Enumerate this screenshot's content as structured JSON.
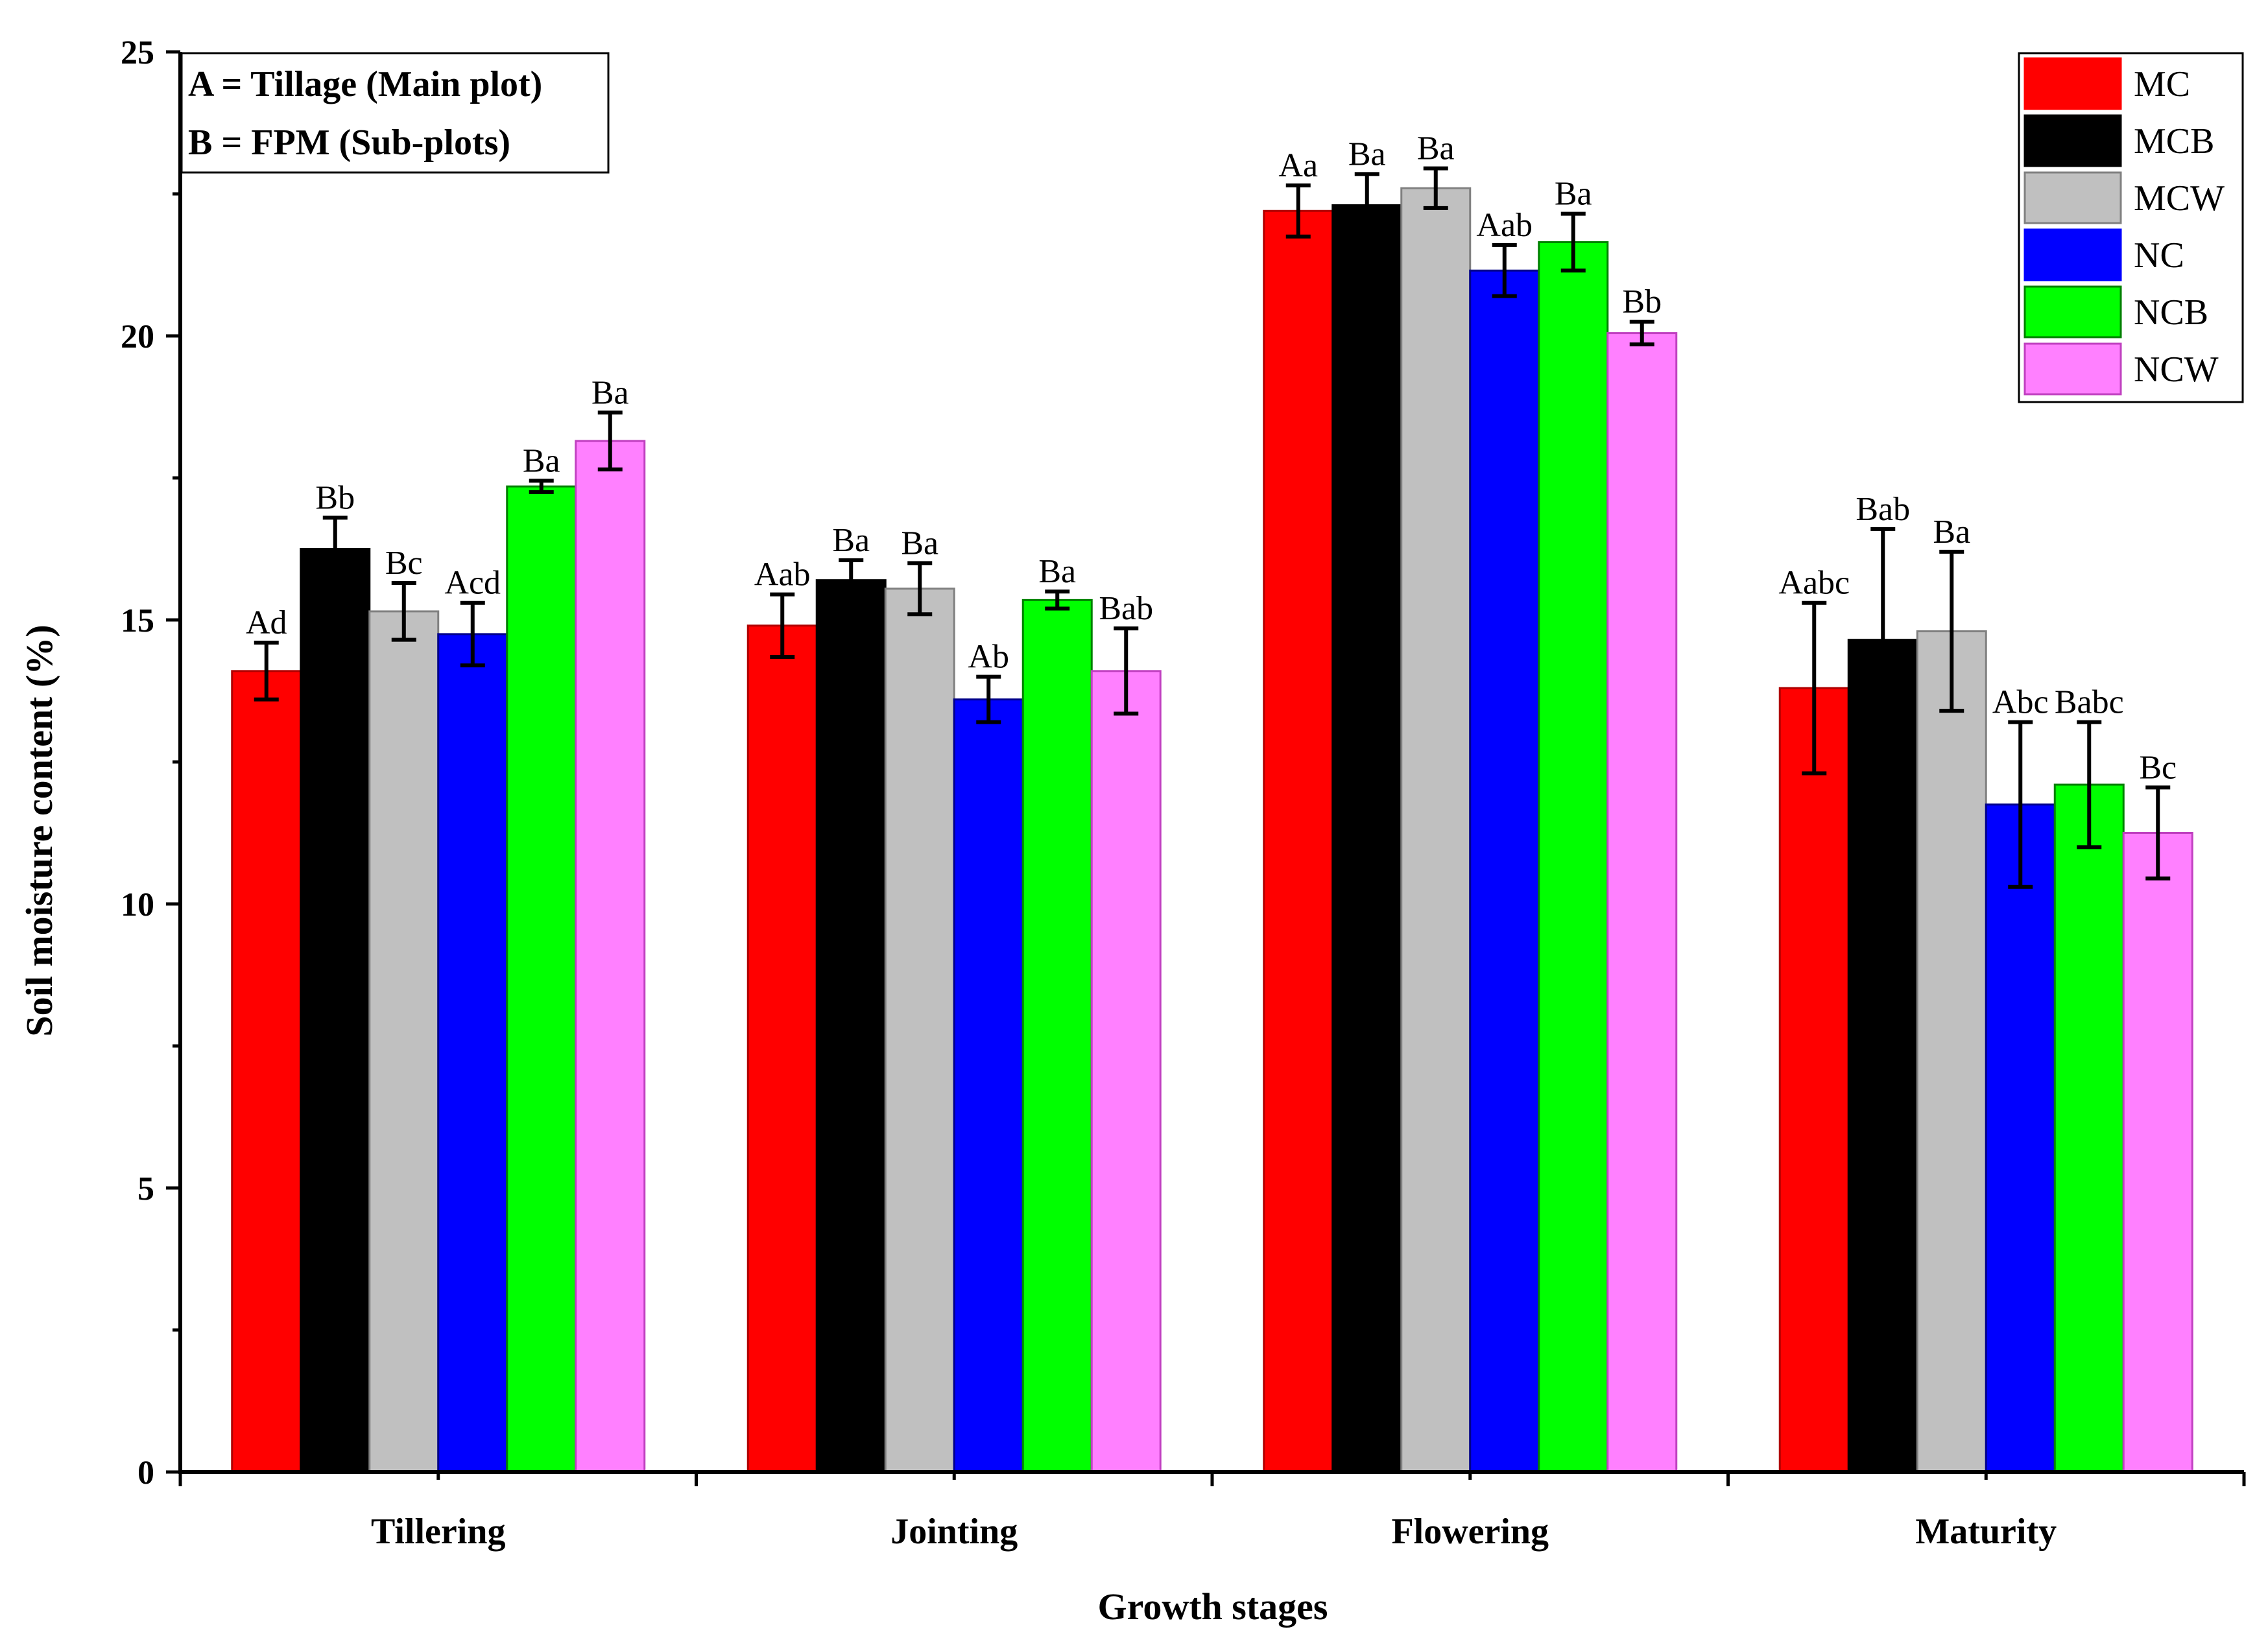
{
  "chart_data": {
    "type": "bar",
    "title": "",
    "xlabel": "Growth stages",
    "ylabel": "Soil moisture content (%)",
    "ylim": [
      0,
      25
    ],
    "yticks": [
      0,
      5,
      10,
      15,
      20,
      25
    ],
    "categories": [
      "Tillering",
      "Jointing",
      "Flowering",
      "Maturity"
    ],
    "series": [
      {
        "name": "MC",
        "color": "#ff0000",
        "values": [
          14.1,
          14.9,
          22.2,
          13.8
        ],
        "errors": [
          0.5,
          0.55,
          0.45,
          1.5
        ],
        "labels": [
          "Ad",
          "Aab",
          "Aa",
          "Aabc"
        ]
      },
      {
        "name": "MCB",
        "color": "#000000",
        "values": [
          16.25,
          15.7,
          22.3,
          14.65
        ],
        "errors": [
          0.55,
          0.35,
          0.55,
          1.95
        ],
        "labels": [
          "Bb",
          "Ba",
          "Ba",
          "Bab"
        ]
      },
      {
        "name": "MCW",
        "color": "#c0c0c0",
        "values": [
          15.15,
          15.55,
          22.6,
          14.8
        ],
        "errors": [
          0.5,
          0.45,
          0.35,
          1.4
        ],
        "labels": [
          "Bc",
          "Ba",
          "Ba",
          "Ba"
        ]
      },
      {
        "name": "NC",
        "color": "#0000ff",
        "values": [
          14.75,
          13.6,
          21.15,
          11.75
        ],
        "errors": [
          0.55,
          0.4,
          0.45,
          1.45
        ],
        "labels": [
          "Acd",
          "Ab",
          "Aab",
          "Abc"
        ]
      },
      {
        "name": "NCB",
        "color": "#00ff00",
        "values": [
          17.35,
          15.35,
          21.65,
          12.1
        ],
        "errors": [
          0.1,
          0.15,
          0.5,
          1.1
        ],
        "labels": [
          "Ba",
          "Ba",
          "Ba",
          "Babc"
        ]
      },
      {
        "name": "NCW",
        "color": "#ff80ff",
        "values": [
          18.15,
          14.1,
          20.05,
          11.25
        ],
        "errors": [
          0.5,
          0.75,
          0.2,
          0.8
        ],
        "labels": [
          "Ba",
          "Bab",
          "Bb",
          "Bc"
        ]
      }
    ],
    "notes": [
      "A = Tillage (Main plot)",
      "B = FPM (Sub-plots)"
    ],
    "legend_position": "top-right",
    "grid": false
  }
}
